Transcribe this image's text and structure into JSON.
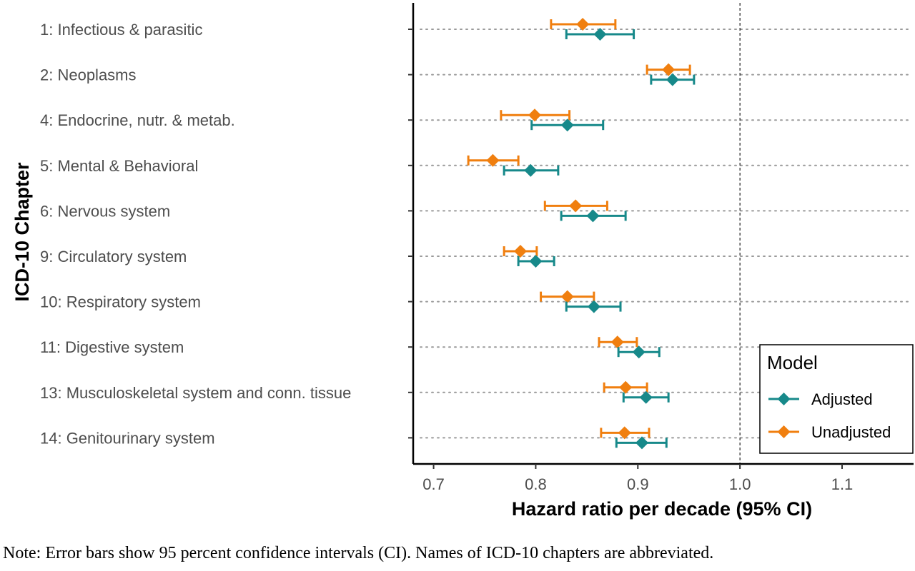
{
  "chart_data": {
    "type": "forest",
    "xlabel": "Hazard ratio per decade (95% CI)",
    "ylabel": "ICD-10 Chapter",
    "xlim": [
      0.68,
      1.17
    ],
    "xticks": [
      0.7,
      0.8,
      0.9,
      1.0,
      1.1
    ],
    "xtick_labels": [
      "0.7",
      "0.8",
      "0.9",
      "1.0",
      "1.1"
    ],
    "reference_line": 1.0,
    "categories": [
      "1: Infectious & parasitic",
      "2: Neoplasms",
      "4: Endocrine, nutr. & metab.",
      "5: Mental & Behavioral",
      "6: Nervous system",
      "9: Circulatory system",
      "10: Respiratory system",
      "11: Digestive system",
      "13: Musculoskeletal system and conn. tissue",
      "14: Genitourinary system"
    ],
    "series": [
      {
        "name": "Adjusted",
        "color": "#17898a",
        "estimates": [
          0.863,
          0.934,
          0.831,
          0.795,
          0.856,
          0.8,
          0.857,
          0.901,
          0.908,
          0.904
        ],
        "lower": [
          0.83,
          0.913,
          0.796,
          0.769,
          0.825,
          0.783,
          0.83,
          0.881,
          0.886,
          0.879
        ],
        "upper": [
          0.896,
          0.955,
          0.866,
          0.822,
          0.888,
          0.818,
          0.883,
          0.921,
          0.93,
          0.928
        ]
      },
      {
        "name": "Unadjusted",
        "color": "#f07f0f",
        "estimates": [
          0.846,
          0.93,
          0.799,
          0.758,
          0.839,
          0.785,
          0.831,
          0.88,
          0.888,
          0.887
        ],
        "lower": [
          0.815,
          0.909,
          0.766,
          0.734,
          0.809,
          0.769,
          0.805,
          0.862,
          0.867,
          0.864
        ],
        "upper": [
          0.878,
          0.951,
          0.833,
          0.783,
          0.87,
          0.801,
          0.857,
          0.899,
          0.909,
          0.911
        ]
      }
    ],
    "legend": {
      "title": "Model",
      "position": "bottom-right"
    },
    "grid": "dotted horizontal"
  },
  "note": "Note: Error bars show 95 percent confidence intervals (CI). Names of ICD-10 chapters are abbreviated."
}
